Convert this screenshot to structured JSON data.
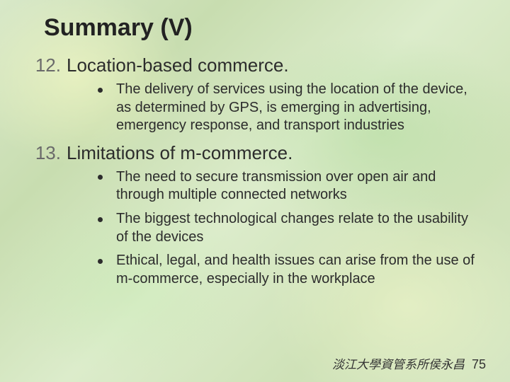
{
  "title": "Summary (V)",
  "title_fontsize": 34,
  "title_color": "#222222",
  "body_fontsize_heading": 26,
  "body_fontsize_bullet": 20,
  "text_color": "#2c2c2c",
  "number_color": "#6a6a6a",
  "bullet_color": "#2c2c2c",
  "background_palette": [
    "#d8e8c8",
    "#c8ddb0",
    "#dceccb",
    "#cfe2b8",
    "#d5e6c2"
  ],
  "items": [
    {
      "number": "12.",
      "heading": "Location-based commerce.",
      "bullets": [
        "The delivery of services using the location of the device, as determined by GPS, is emerging in advertising, emergency response, and transport industries"
      ]
    },
    {
      "number": "13.",
      "heading": "Limitations of m-commerce.",
      "bullets": [
        "The need to secure transmission over open air and through multiple connected networks",
        "The biggest technological changes relate to the usability of the devices",
        "Ethical, legal, and health issues can arise from the use of m-commerce, especially in the workplace"
      ]
    }
  ],
  "footer": {
    "text": "淡江大學資管系所侯永昌",
    "page": "75",
    "fontsize": 17,
    "color": "#333333"
  }
}
